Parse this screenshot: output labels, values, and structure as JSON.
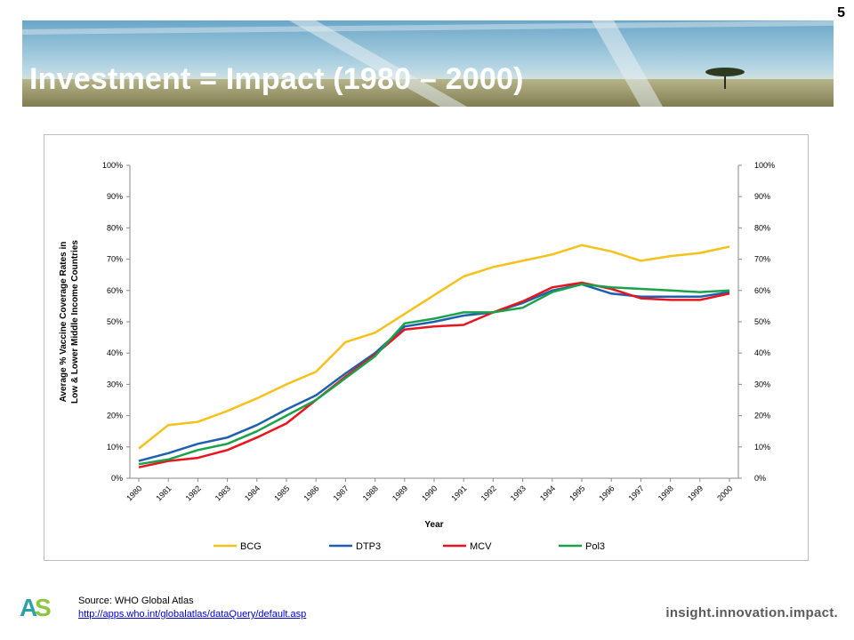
{
  "slide": {
    "page_number": "5",
    "title": "Investment = Impact (1980 – 2000)"
  },
  "footer": {
    "source_label": "Source: WHO  Global Atlas",
    "source_link": "http://apps.who.int/globalatlas/dataQuery/default.asp",
    "tagline": "insight.innovation.impact.",
    "logo_letters": "AS"
  },
  "colors": {
    "BCG": "#f5c11a",
    "DTP3": "#1f5fae",
    "MCV": "#e8141e",
    "Pol3": "#1aa24a"
  },
  "chart_data": {
    "type": "line",
    "xlabel": "Year",
    "ylabel_line1": "Average % Vaccine Coverage Rates in",
    "ylabel_line2": "Low & Lower Middle Income Countries",
    "ylim": [
      0,
      100
    ],
    "y_ticks": [
      "0%",
      "10%",
      "20%",
      "30%",
      "40%",
      "50%",
      "60%",
      "70%",
      "80%",
      "90%",
      "100%"
    ],
    "x": [
      "1980",
      "1981",
      "1982",
      "1983",
      "1984",
      "1985",
      "1986",
      "1987",
      "1988",
      "1989",
      "1990",
      "1991",
      "1992",
      "1993",
      "1994",
      "1995",
      "1996",
      "1997",
      "1998",
      "1999",
      "2000"
    ],
    "legend_position": "bottom",
    "grid": false,
    "secondary_y_axis": true,
    "series": [
      {
        "name": "BCG",
        "values": [
          9.5,
          17,
          18,
          21.5,
          25.5,
          30,
          34,
          43.5,
          46.5,
          52.5,
          58.5,
          64.5,
          67.5,
          69.5,
          71.5,
          74.5,
          72.5,
          69.5,
          71,
          72,
          74
        ]
      },
      {
        "name": "DTP3",
        "values": [
          5.5,
          8,
          11,
          13,
          17,
          22,
          26.5,
          33.5,
          40,
          48.5,
          50,
          52,
          53,
          56,
          60,
          62,
          59,
          58,
          58,
          58,
          59.5
        ]
      },
      {
        "name": "MCV",
        "values": [
          3.5,
          5.5,
          6.5,
          9,
          13,
          17.5,
          25,
          32.5,
          39.5,
          47.5,
          48.5,
          49,
          53,
          56.5,
          61,
          62.5,
          60.5,
          57.5,
          57,
          57,
          59
        ]
      },
      {
        "name": "Pol3",
        "values": [
          4.5,
          6,
          9,
          11,
          15,
          20,
          25,
          32,
          39,
          49.5,
          51,
          53,
          53,
          54.5,
          59.5,
          62,
          61,
          60.5,
          60,
          59.5,
          60
        ]
      }
    ]
  }
}
